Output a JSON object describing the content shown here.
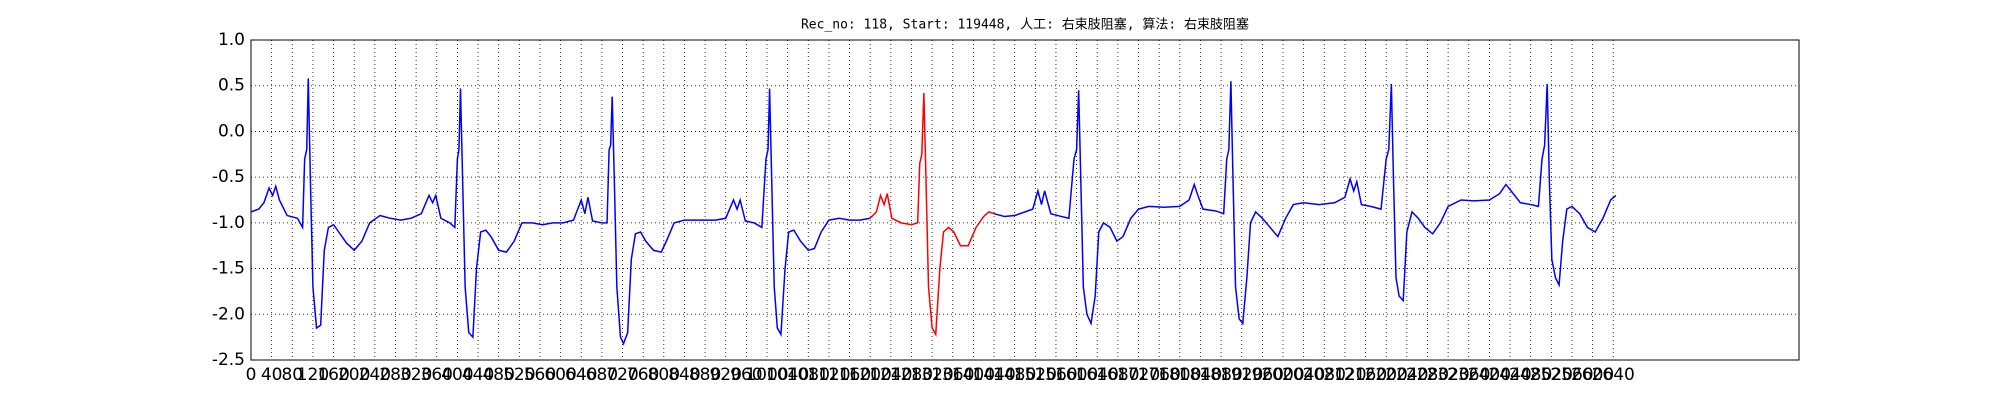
{
  "chart_data": {
    "type": "line",
    "title": "Rec_no: 118, Start: 119448, 人工: 右束肢阻塞, 算法: 右束肢阻塞",
    "xlim": [
      0,
      3000
    ],
    "ylim": [
      -2.5,
      1.0
    ],
    "xticks": [
      0,
      40,
      80,
      120,
      160,
      200,
      240,
      280,
      320,
      360,
      400,
      440,
      480,
      520,
      560,
      600,
      640,
      680,
      720,
      760,
      800,
      840,
      880,
      920,
      960,
      1000,
      1040,
      1080,
      1120,
      1160,
      1200,
      1240,
      1280,
      1320,
      1360,
      1400,
      1440,
      1480,
      1520,
      1560,
      1600,
      1640,
      1680,
      1720,
      1760,
      1800,
      1840,
      1880,
      1920,
      1960,
      2000,
      2040,
      2080,
      2120,
      2160,
      2200,
      2240,
      2280,
      2320,
      2360,
      2400,
      2440,
      2480,
      2520,
      2560,
      2600,
      2640
    ],
    "yticks": [
      {
        "value": 1.0,
        "label": "1.0"
      },
      0.5,
      {
        "value": 0.0,
        "label": "0.0"
      },
      -0.5,
      {
        "value": -1.0,
        "label": "-1.0"
      },
      -1.5,
      {
        "value": -2.0,
        "label": "-2.0"
      },
      -2.5
    ],
    "grid": true,
    "series": [
      {
        "color": "#0000ff",
        "x": [
          0,
          15,
          25,
          35,
          42,
          48,
          55,
          70,
          90,
          100,
          104,
          108,
          111,
          115,
          120,
          127,
          135,
          142,
          150,
          160,
          170,
          185,
          200,
          215,
          230,
          250,
          270,
          290,
          310,
          330,
          345,
          352,
          358,
          368,
          385,
          395,
          400,
          403,
          406,
          410,
          415,
          422,
          430,
          437,
          445,
          455,
          465,
          480,
          495,
          510,
          525,
          545,
          565,
          585,
          605,
          625,
          640,
          647,
          653,
          662,
          680,
          690,
          694,
          697,
          700,
          704,
          709,
          716,
          722,
          730,
          737,
          745,
          755,
          765,
          780,
          795,
          805,
          820,
          840,
          870,
          900,
          920,
          935,
          942,
          948,
          958,
          975,
          990,
          998,
          1002,
          1005,
          1009,
          1014,
          1020,
          1027,
          1035,
          1042,
          1052,
          1065,
          1080,
          1092,
          1105,
          1120,
          1140,
          1160,
          1180,
          1200
        ],
        "values": [
          -0.88,
          -0.85,
          -0.78,
          -0.62,
          -0.7,
          -0.6,
          -0.75,
          -0.92,
          -0.95,
          -1.05,
          -0.3,
          -0.2,
          0.58,
          -0.5,
          -1.7,
          -2.15,
          -2.12,
          -1.3,
          -1.05,
          -1.02,
          -1.1,
          -1.22,
          -1.3,
          -1.2,
          -1.0,
          -0.92,
          -0.95,
          -0.97,
          -0.95,
          -0.9,
          -0.7,
          -0.78,
          -0.7,
          -0.95,
          -1.0,
          -1.05,
          -0.3,
          -0.2,
          0.47,
          -0.5,
          -1.7,
          -2.2,
          -2.25,
          -1.5,
          -1.1,
          -1.08,
          -1.15,
          -1.3,
          -1.32,
          -1.2,
          -1.0,
          -1.0,
          -1.02,
          -1.0,
          -1.0,
          -0.97,
          -0.75,
          -0.9,
          -0.72,
          -0.98,
          -1.0,
          -1.0,
          -0.2,
          -0.15,
          0.38,
          -0.5,
          -1.7,
          -2.25,
          -2.32,
          -2.2,
          -1.4,
          -1.12,
          -1.1,
          -1.2,
          -1.3,
          -1.32,
          -1.2,
          -1.0,
          -0.97,
          -0.97,
          -0.97,
          -0.95,
          -0.75,
          -0.85,
          -0.75,
          -0.98,
          -1.0,
          -1.05,
          -0.3,
          -0.2,
          0.47,
          -0.5,
          -1.7,
          -2.15,
          -2.22,
          -1.5,
          -1.1,
          -1.08,
          -1.2,
          -1.3,
          -1.28,
          -1.1,
          -0.97,
          -0.95,
          -0.97,
          -0.97,
          -0.95
        ]
      },
      {
        "color": "#ff0000",
        "x": [
          1200,
          1212,
          1220,
          1227,
          1233,
          1242,
          1260,
          1280,
          1292,
          1296,
          1300,
          1304,
          1308,
          1313,
          1320,
          1327,
          1335,
          1342,
          1352,
          1362,
          1375,
          1390,
          1405,
          1420,
          1430,
          1440
        ],
        "values": [
          -0.95,
          -0.88,
          -0.7,
          -0.8,
          -0.68,
          -0.95,
          -1.0,
          -1.02,
          -1.0,
          -0.35,
          -0.25,
          0.42,
          -0.5,
          -1.7,
          -2.15,
          -2.22,
          -1.5,
          -1.1,
          -1.05,
          -1.1,
          -1.25,
          -1.25,
          -1.05,
          -0.93,
          -0.88,
          -0.9
        ]
      },
      {
        "color": "#0000ff",
        "x": [
          1440,
          1460,
          1480,
          1500,
          1515,
          1525,
          1532,
          1538,
          1550,
          1570,
          1585,
          1595,
          1600,
          1604,
          1608,
          1613,
          1620,
          1628,
          1636,
          1643,
          1652,
          1665,
          1678,
          1690,
          1705,
          1720,
          1740,
          1770,
          1800,
          1818,
          1828,
          1835,
          1845,
          1870,
          1885,
          1891,
          1895,
          1899,
          1903,
          1908,
          1915,
          1922,
          1930,
          1937,
          1947,
          1960,
          1975,
          1990,
          2005,
          2020,
          2040,
          2070,
          2100,
          2120,
          2130,
          2137,
          2143,
          2152,
          2170,
          2190,
          2200,
          2205,
          2210,
          2214,
          2219,
          2225,
          2233,
          2240,
          2250,
          2262,
          2275,
          2290,
          2305,
          2320,
          2345,
          2370,
          2400,
          2420,
          2432,
          2442,
          2460,
          2480,
          2495,
          2502,
          2507,
          2512,
          2516,
          2521,
          2528,
          2535,
          2542,
          2550,
          2560,
          2575,
          2590,
          2605,
          2620,
          2635,
          2645
        ],
        "values": [
          -0.9,
          -0.93,
          -0.92,
          -0.88,
          -0.85,
          -0.65,
          -0.8,
          -0.65,
          -0.9,
          -0.93,
          -0.95,
          -0.3,
          -0.2,
          0.45,
          -0.5,
          -1.7,
          -2.0,
          -2.1,
          -1.8,
          -1.1,
          -1.0,
          -1.05,
          -1.2,
          -1.15,
          -0.95,
          -0.85,
          -0.82,
          -0.83,
          -0.82,
          -0.75,
          -0.58,
          -0.7,
          -0.85,
          -0.87,
          -0.9,
          -0.3,
          -0.2,
          0.55,
          -0.5,
          -1.7,
          -2.05,
          -2.1,
          -1.6,
          -1.0,
          -0.88,
          -0.95,
          -1.05,
          -1.15,
          -0.95,
          -0.8,
          -0.78,
          -0.8,
          -0.78,
          -0.72,
          -0.52,
          -0.65,
          -0.55,
          -0.8,
          -0.82,
          -0.85,
          -0.3,
          -0.2,
          0.52,
          -0.5,
          -1.6,
          -1.8,
          -1.85,
          -1.1,
          -0.88,
          -0.95,
          -1.05,
          -1.12,
          -1.0,
          -0.82,
          -0.75,
          -0.76,
          -0.75,
          -0.68,
          -0.58,
          -0.65,
          -0.78,
          -0.8,
          -0.82,
          -0.3,
          -0.15,
          0.52,
          -0.5,
          -1.4,
          -1.6,
          -1.68,
          -1.2,
          -0.85,
          -0.82,
          -0.9,
          -1.05,
          -1.1,
          -0.95,
          -0.75,
          -0.7
        ]
      }
    ]
  }
}
